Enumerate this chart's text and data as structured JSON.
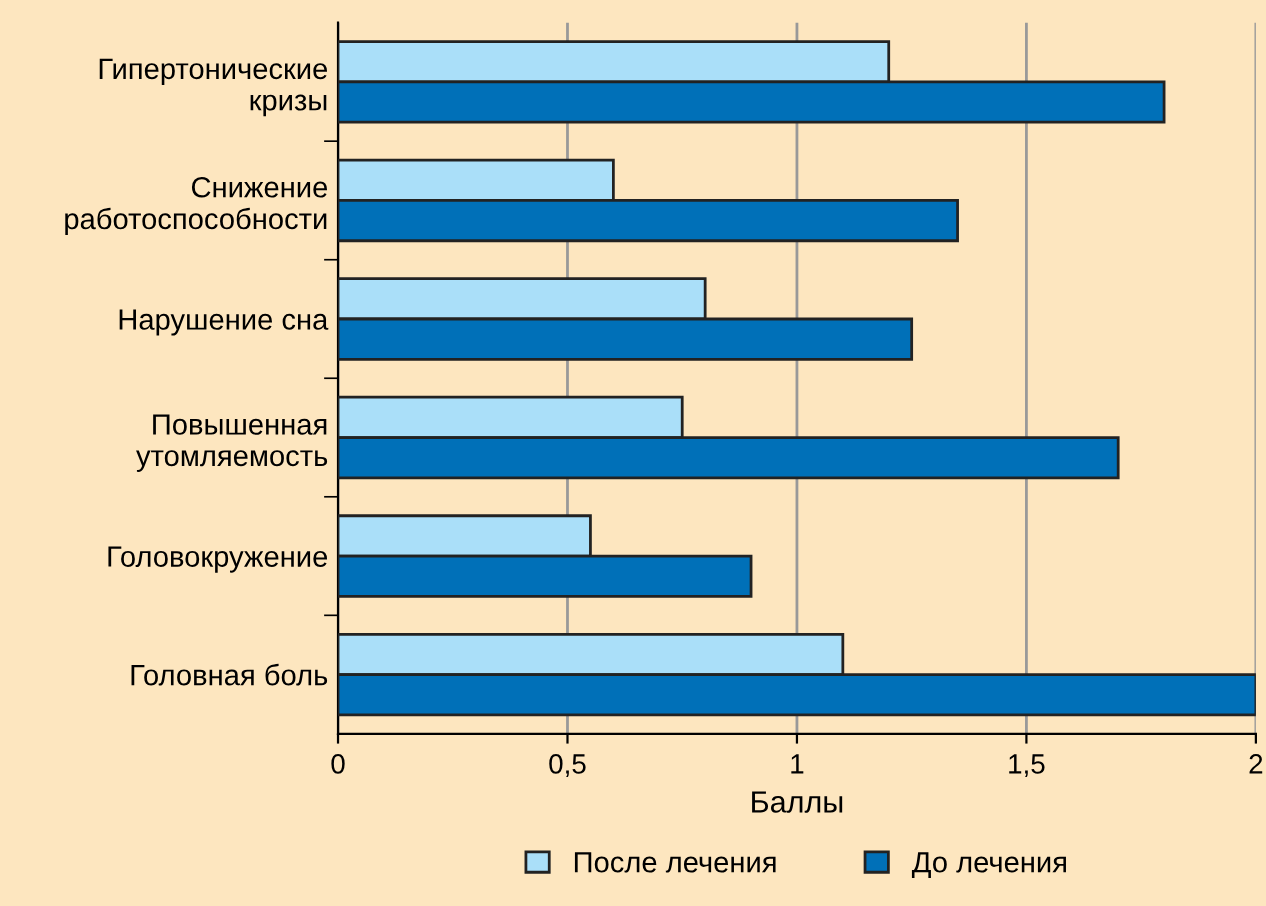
{
  "chart_data": {
    "type": "bar",
    "orientation": "horizontal",
    "xlabel": "Баллы",
    "categories": [
      "Гипертонические\nкризы",
      "Снижение\nработоспособности",
      "Нарушение сна",
      "Повышенная\nутомляемость",
      "Головокружение",
      "Головная боль"
    ],
    "series": [
      {
        "name": "После лечения",
        "color": "#aadff9",
        "values": [
          1.2,
          0.6,
          0.8,
          0.75,
          0.55,
          1.1
        ]
      },
      {
        "name": "До лечения",
        "color": "#0070b8",
        "values": [
          1.8,
          1.35,
          1.25,
          1.7,
          0.9,
          2.0
        ]
      }
    ],
    "xlim": [
      0,
      2
    ],
    "xticks": [
      0,
      "0,5",
      1,
      "1,5",
      2
    ],
    "grid": "x",
    "legend": "bottom"
  }
}
